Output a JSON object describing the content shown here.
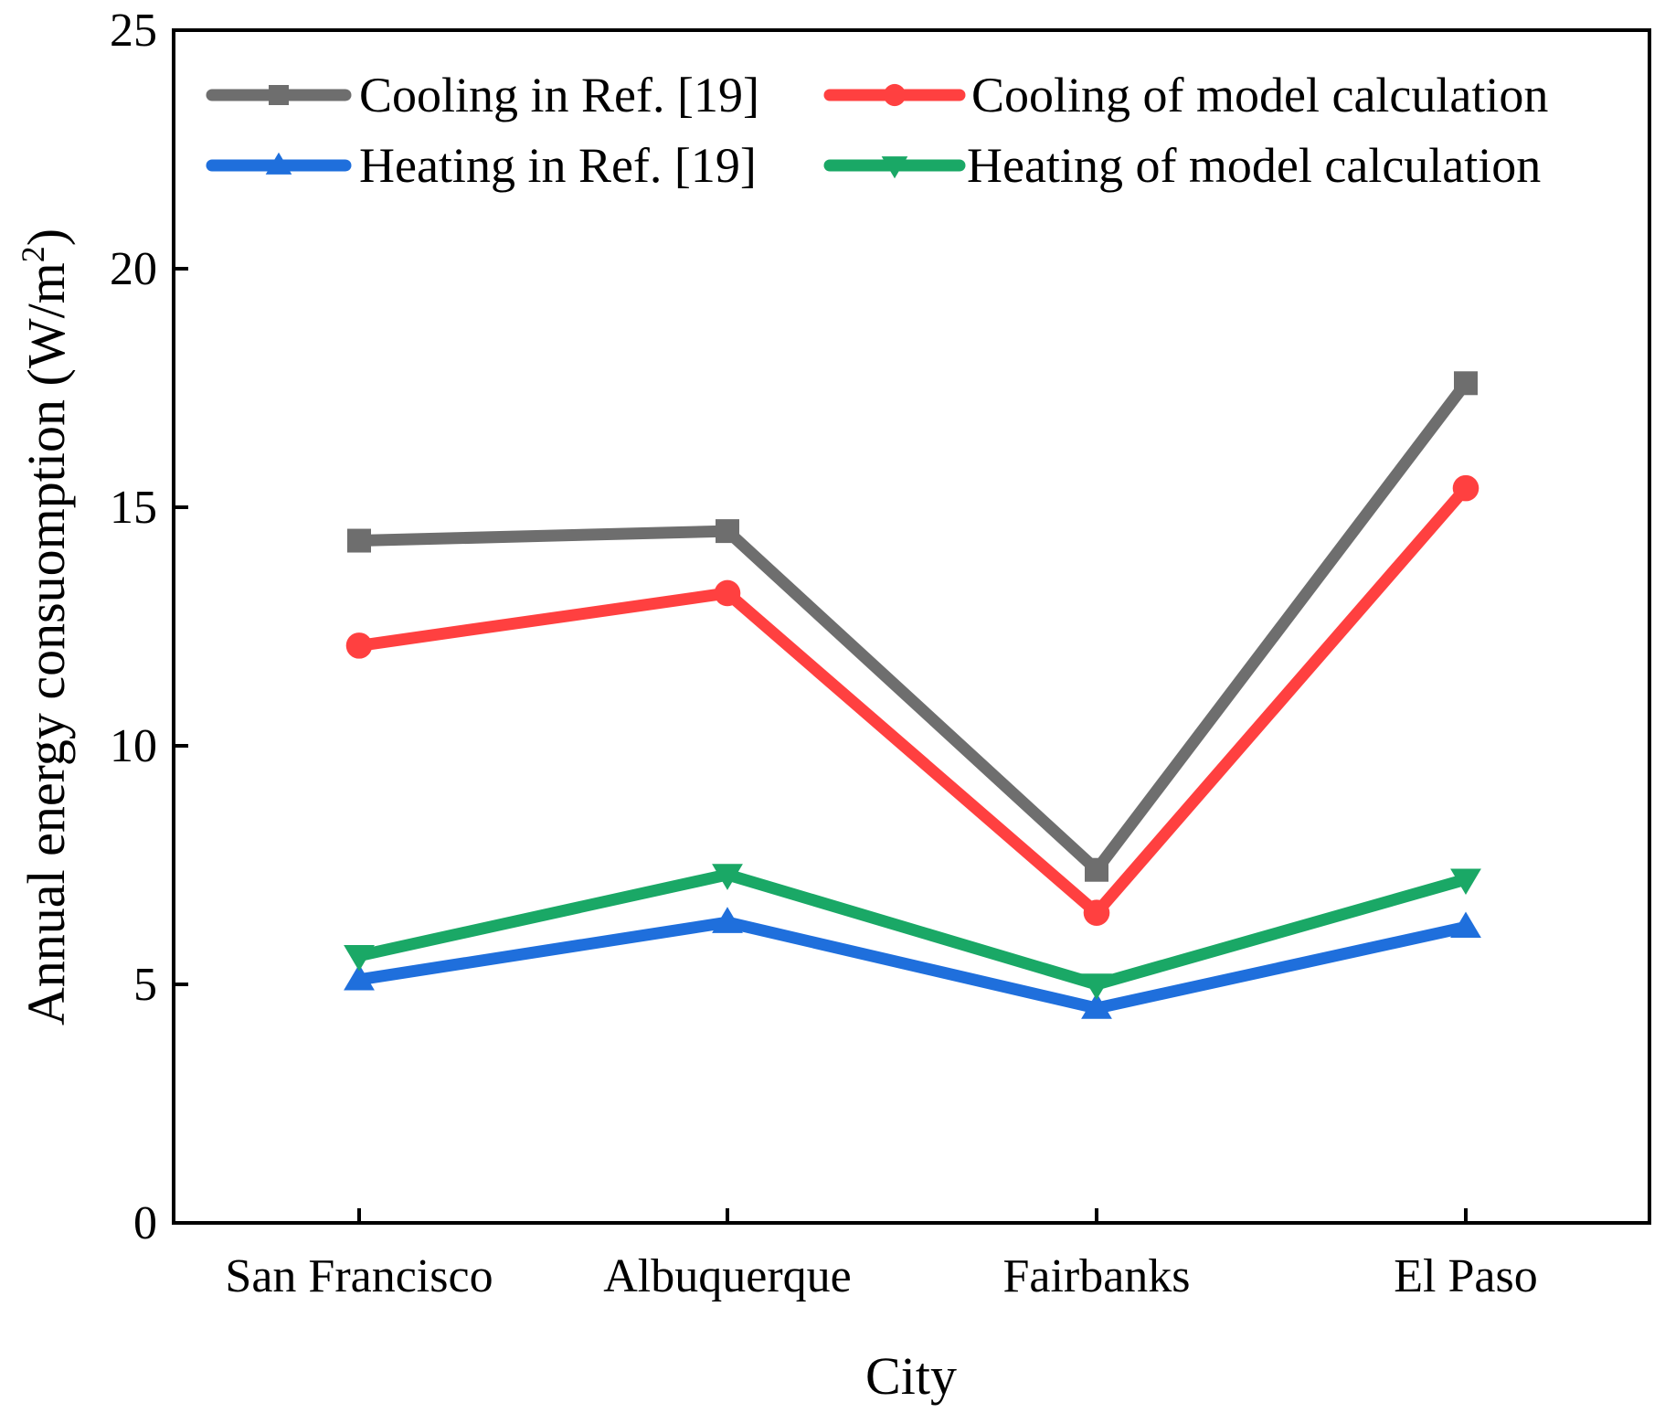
{
  "chart_data": {
    "type": "line",
    "xlabel": "City",
    "ylabel": "Annual energy consuomption (W/m",
    "ylabel_superscript": "2",
    "ylabel_close": ")",
    "categories": [
      "San Francisco",
      "Albuquerque",
      "Fairbanks",
      "El Paso"
    ],
    "ylim": [
      0,
      25
    ],
    "yticks": [
      0,
      5,
      10,
      15,
      20,
      25
    ],
    "grid": false,
    "legend_position": "top",
    "series": [
      {
        "name": "Cooling in Ref. [19]",
        "color": "#6e6e6e",
        "marker": "square",
        "values": [
          14.3,
          14.5,
          7.4,
          17.6
        ]
      },
      {
        "name": "Cooling of model calculation",
        "color": "#ff4040",
        "marker": "circle",
        "values": [
          12.1,
          13.2,
          6.5,
          15.4
        ]
      },
      {
        "name": "Heating in Ref. [19]",
        "color": "#1f6fdc",
        "marker": "triangle-up",
        "values": [
          5.1,
          6.3,
          4.5,
          6.2
        ]
      },
      {
        "name": "Heating of model calculation",
        "color": "#1aa866",
        "marker": "triangle-down",
        "values": [
          5.6,
          7.3,
          5.0,
          7.2
        ]
      }
    ]
  }
}
